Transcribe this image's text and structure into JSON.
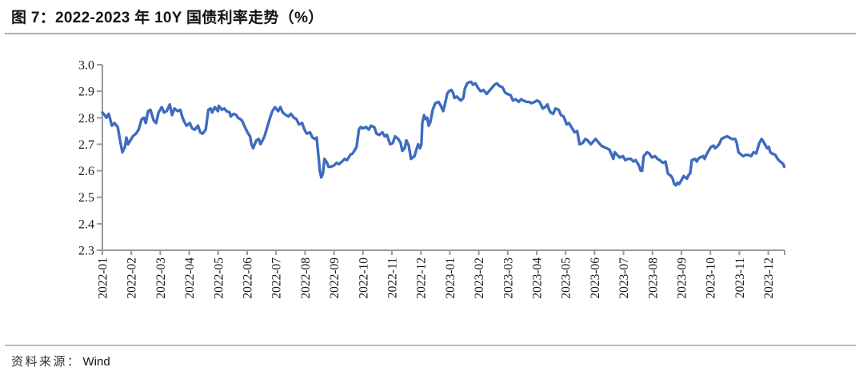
{
  "title": "图 7：2022-2023 年 10Y 国债利率走势（%）",
  "source": {
    "label": "资料来源：",
    "value": "Wind"
  },
  "colors": {
    "line": "#3e6bbf",
    "axis": "#9a9a9a",
    "tick_text": "#1a1a1a",
    "title_rule": "#9fb4c8",
    "footer_rule": "#aec0d1"
  },
  "chart_data": {
    "type": "line",
    "title": "图 7：2022-2023 年 10Y 国债利率走势（%）",
    "xlabel": "",
    "ylabel": "",
    "ylim": [
      2.3,
      3.0
    ],
    "grid": false,
    "legend": "none",
    "y_tick_labels": [
      "3.0",
      "2.9",
      "2.8",
      "2.7",
      "2.6",
      "2.5",
      "2.4",
      "2.3"
    ],
    "y_ticks": [
      3.0,
      2.9,
      2.8,
      2.7,
      2.6,
      2.5,
      2.4,
      2.3
    ],
    "x_tick_labels": [
      "2022-01",
      "2022-02",
      "2022-03",
      "2022-04",
      "2022-05",
      "2022-06",
      "2022-07",
      "2022-08",
      "2022-09",
      "2022-10",
      "2022-11",
      "2022-12",
      "2023-01",
      "2023-02",
      "2023-03",
      "2023-04",
      "2023-05",
      "2023-06",
      "2023-07",
      "2023-08",
      "2023-09",
      "2023-10",
      "2023-11",
      "2023-12"
    ],
    "series": [
      {
        "name": "10Y 国债利率（%）",
        "color": "#3e6bbf",
        "x_unit": "months since 2022-01 tick",
        "points": [
          [
            0.0,
            2.82
          ],
          [
            0.08,
            2.81
          ],
          [
            0.14,
            2.8
          ],
          [
            0.22,
            2.815
          ],
          [
            0.33,
            2.77
          ],
          [
            0.42,
            2.78
          ],
          [
            0.53,
            2.765
          ],
          [
            0.61,
            2.715
          ],
          [
            0.69,
            2.67
          ],
          [
            0.78,
            2.69
          ],
          [
            0.83,
            2.725
          ],
          [
            0.89,
            2.7
          ],
          [
            0.97,
            2.715
          ],
          [
            1.05,
            2.73
          ],
          [
            1.16,
            2.74
          ],
          [
            1.25,
            2.755
          ],
          [
            1.36,
            2.795
          ],
          [
            1.44,
            2.8
          ],
          [
            1.5,
            2.78
          ],
          [
            1.58,
            2.825
          ],
          [
            1.66,
            2.83
          ],
          [
            1.77,
            2.79
          ],
          [
            1.86,
            2.78
          ],
          [
            1.94,
            2.82
          ],
          [
            2.05,
            2.84
          ],
          [
            2.13,
            2.82
          ],
          [
            2.22,
            2.825
          ],
          [
            2.33,
            2.85
          ],
          [
            2.41,
            2.81
          ],
          [
            2.49,
            2.835
          ],
          [
            2.6,
            2.825
          ],
          [
            2.69,
            2.83
          ],
          [
            2.77,
            2.8
          ],
          [
            2.83,
            2.785
          ],
          [
            2.91,
            2.77
          ],
          [
            3.02,
            2.78
          ],
          [
            3.1,
            2.76
          ],
          [
            3.19,
            2.755
          ],
          [
            3.3,
            2.77
          ],
          [
            3.38,
            2.745
          ],
          [
            3.46,
            2.74
          ],
          [
            3.57,
            2.755
          ],
          [
            3.66,
            2.83
          ],
          [
            3.74,
            2.835
          ],
          [
            3.79,
            2.82
          ],
          [
            3.88,
            2.84
          ],
          [
            3.99,
            2.825
          ],
          [
            4.02,
            2.845
          ],
          [
            4.13,
            2.83
          ],
          [
            4.21,
            2.835
          ],
          [
            4.29,
            2.825
          ],
          [
            4.4,
            2.82
          ],
          [
            4.43,
            2.805
          ],
          [
            4.54,
            2.815
          ],
          [
            4.63,
            2.81
          ],
          [
            4.68,
            2.8
          ],
          [
            4.76,
            2.795
          ],
          [
            4.82,
            2.79
          ],
          [
            4.9,
            2.77
          ],
          [
            4.99,
            2.75
          ],
          [
            5.04,
            2.74
          ],
          [
            5.1,
            2.73
          ],
          [
            5.15,
            2.7
          ],
          [
            5.21,
            2.685
          ],
          [
            5.26,
            2.7
          ],
          [
            5.32,
            2.715
          ],
          [
            5.4,
            2.72
          ],
          [
            5.46,
            2.7
          ],
          [
            5.51,
            2.71
          ],
          [
            5.6,
            2.73
          ],
          [
            5.71,
            2.77
          ],
          [
            5.79,
            2.8
          ],
          [
            5.87,
            2.825
          ],
          [
            5.96,
            2.84
          ],
          [
            6.07,
            2.825
          ],
          [
            6.15,
            2.84
          ],
          [
            6.23,
            2.82
          ],
          [
            6.34,
            2.81
          ],
          [
            6.43,
            2.805
          ],
          [
            6.51,
            2.815
          ],
          [
            6.62,
            2.8
          ],
          [
            6.7,
            2.795
          ],
          [
            6.79,
            2.775
          ],
          [
            6.9,
            2.78
          ],
          [
            6.98,
            2.755
          ],
          [
            7.06,
            2.74
          ],
          [
            7.17,
            2.745
          ],
          [
            7.26,
            2.725
          ],
          [
            7.34,
            2.72
          ],
          [
            7.4,
            2.725
          ],
          [
            7.45,
            2.67
          ],
          [
            7.51,
            2.6
          ],
          [
            7.56,
            2.575
          ],
          [
            7.62,
            2.59
          ],
          [
            7.67,
            2.645
          ],
          [
            7.76,
            2.63
          ],
          [
            7.81,
            2.615
          ],
          [
            7.89,
            2.615
          ],
          [
            8.0,
            2.62
          ],
          [
            8.09,
            2.63
          ],
          [
            8.17,
            2.625
          ],
          [
            8.28,
            2.635
          ],
          [
            8.37,
            2.645
          ],
          [
            8.45,
            2.64
          ],
          [
            8.56,
            2.66
          ],
          [
            8.64,
            2.665
          ],
          [
            8.73,
            2.68
          ],
          [
            8.78,
            2.69
          ],
          [
            8.86,
            2.755
          ],
          [
            8.92,
            2.765
          ],
          [
            9.0,
            2.76
          ],
          [
            9.11,
            2.765
          ],
          [
            9.2,
            2.755
          ],
          [
            9.28,
            2.77
          ],
          [
            9.39,
            2.765
          ],
          [
            9.47,
            2.74
          ],
          [
            9.56,
            2.735
          ],
          [
            9.67,
            2.745
          ],
          [
            9.75,
            2.73
          ],
          [
            9.83,
            2.735
          ],
          [
            9.94,
            2.7
          ],
          [
            10.03,
            2.705
          ],
          [
            10.11,
            2.73
          ],
          [
            10.22,
            2.72
          ],
          [
            10.3,
            2.705
          ],
          [
            10.36,
            2.675
          ],
          [
            10.44,
            2.685
          ],
          [
            10.5,
            2.715
          ],
          [
            10.58,
            2.695
          ],
          [
            10.66,
            2.645
          ],
          [
            10.78,
            2.655
          ],
          [
            10.86,
            2.685
          ],
          [
            10.91,
            2.7
          ],
          [
            10.97,
            2.685
          ],
          [
            11.02,
            2.7
          ],
          [
            11.05,
            2.78
          ],
          [
            11.11,
            2.81
          ],
          [
            11.16,
            2.795
          ],
          [
            11.22,
            2.8
          ],
          [
            11.27,
            2.77
          ],
          [
            11.33,
            2.785
          ],
          [
            11.41,
            2.83
          ],
          [
            11.5,
            2.855
          ],
          [
            11.61,
            2.86
          ],
          [
            11.69,
            2.845
          ],
          [
            11.77,
            2.825
          ],
          [
            11.83,
            2.85
          ],
          [
            11.91,
            2.89
          ],
          [
            11.97,
            2.9
          ],
          [
            12.05,
            2.905
          ],
          [
            12.11,
            2.895
          ],
          [
            12.16,
            2.875
          ],
          [
            12.24,
            2.88
          ],
          [
            12.33,
            2.87
          ],
          [
            12.38,
            2.865
          ],
          [
            12.47,
            2.875
          ],
          [
            12.52,
            2.91
          ],
          [
            12.6,
            2.93
          ],
          [
            12.69,
            2.935
          ],
          [
            12.74,
            2.935
          ],
          [
            12.8,
            2.925
          ],
          [
            12.88,
            2.93
          ],
          [
            12.99,
            2.91
          ],
          [
            13.07,
            2.9
          ],
          [
            13.16,
            2.905
          ],
          [
            13.27,
            2.89
          ],
          [
            13.35,
            2.9
          ],
          [
            13.43,
            2.91
          ],
          [
            13.55,
            2.925
          ],
          [
            13.63,
            2.93
          ],
          [
            13.71,
            2.92
          ],
          [
            13.82,
            2.915
          ],
          [
            13.91,
            2.895
          ],
          [
            13.99,
            2.89
          ],
          [
            14.1,
            2.885
          ],
          [
            14.18,
            2.865
          ],
          [
            14.27,
            2.87
          ],
          [
            14.38,
            2.86
          ],
          [
            14.46,
            2.87
          ],
          [
            14.54,
            2.865
          ],
          [
            14.65,
            2.86
          ],
          [
            14.74,
            2.86
          ],
          [
            14.82,
            2.855
          ],
          [
            14.93,
            2.86
          ],
          [
            15.01,
            2.865
          ],
          [
            15.1,
            2.86
          ],
          [
            15.21,
            2.835
          ],
          [
            15.29,
            2.84
          ],
          [
            15.37,
            2.85
          ],
          [
            15.43,
            2.83
          ],
          [
            15.48,
            2.82
          ],
          [
            15.57,
            2.815
          ],
          [
            15.65,
            2.835
          ],
          [
            15.76,
            2.83
          ],
          [
            15.84,
            2.81
          ],
          [
            15.93,
            2.805
          ],
          [
            16.04,
            2.775
          ],
          [
            16.12,
            2.78
          ],
          [
            16.2,
            2.765
          ],
          [
            16.31,
            2.745
          ],
          [
            16.4,
            2.75
          ],
          [
            16.48,
            2.7
          ],
          [
            16.59,
            2.705
          ],
          [
            16.68,
            2.72
          ],
          [
            16.76,
            2.715
          ],
          [
            16.87,
            2.7
          ],
          [
            16.95,
            2.71
          ],
          [
            17.04,
            2.72
          ],
          [
            17.15,
            2.705
          ],
          [
            17.23,
            2.695
          ],
          [
            17.31,
            2.69
          ],
          [
            17.42,
            2.685
          ],
          [
            17.51,
            2.68
          ],
          [
            17.59,
            2.66
          ],
          [
            17.65,
            2.645
          ],
          [
            17.7,
            2.67
          ],
          [
            17.78,
            2.66
          ],
          [
            17.87,
            2.65
          ],
          [
            17.98,
            2.655
          ],
          [
            18.06,
            2.64
          ],
          [
            18.14,
            2.645
          ],
          [
            18.25,
            2.645
          ],
          [
            18.34,
            2.635
          ],
          [
            18.42,
            2.64
          ],
          [
            18.53,
            2.62
          ],
          [
            18.59,
            2.6
          ],
          [
            18.64,
            2.6
          ],
          [
            18.7,
            2.655
          ],
          [
            18.81,
            2.67
          ],
          [
            18.89,
            2.665
          ],
          [
            18.98,
            2.65
          ],
          [
            19.09,
            2.655
          ],
          [
            19.17,
            2.645
          ],
          [
            19.25,
            2.64
          ],
          [
            19.36,
            2.63
          ],
          [
            19.45,
            2.635
          ],
          [
            19.53,
            2.59
          ],
          [
            19.64,
            2.58
          ],
          [
            19.7,
            2.57
          ],
          [
            19.75,
            2.55
          ],
          [
            19.81,
            2.545
          ],
          [
            19.86,
            2.555
          ],
          [
            19.92,
            2.55
          ],
          [
            20.0,
            2.565
          ],
          [
            20.08,
            2.58
          ],
          [
            20.19,
            2.57
          ],
          [
            20.25,
            2.585
          ],
          [
            20.3,
            2.59
          ],
          [
            20.36,
            2.64
          ],
          [
            20.47,
            2.645
          ],
          [
            20.53,
            2.635
          ],
          [
            20.58,
            2.645
          ],
          [
            20.64,
            2.65
          ],
          [
            20.75,
            2.655
          ],
          [
            20.8,
            2.645
          ],
          [
            20.86,
            2.66
          ],
          [
            20.91,
            2.67
          ],
          [
            21.02,
            2.69
          ],
          [
            21.11,
            2.695
          ],
          [
            21.16,
            2.685
          ],
          [
            21.22,
            2.69
          ],
          [
            21.3,
            2.7
          ],
          [
            21.38,
            2.72
          ],
          [
            21.47,
            2.725
          ],
          [
            21.58,
            2.73
          ],
          [
            21.66,
            2.725
          ],
          [
            21.74,
            2.72
          ],
          [
            21.86,
            2.72
          ],
          [
            21.91,
            2.705
          ],
          [
            21.97,
            2.67
          ],
          [
            22.02,
            2.665
          ],
          [
            22.13,
            2.655
          ],
          [
            22.22,
            2.66
          ],
          [
            22.3,
            2.66
          ],
          [
            22.41,
            2.655
          ],
          [
            22.49,
            2.67
          ],
          [
            22.58,
            2.665
          ],
          [
            22.69,
            2.705
          ],
          [
            22.77,
            2.72
          ],
          [
            22.83,
            2.71
          ],
          [
            22.88,
            2.7
          ],
          [
            22.96,
            2.685
          ],
          [
            23.02,
            2.69
          ],
          [
            23.07,
            2.67
          ],
          [
            23.13,
            2.665
          ],
          [
            23.24,
            2.66
          ],
          [
            23.32,
            2.645
          ],
          [
            23.41,
            2.635
          ],
          [
            23.52,
            2.625
          ],
          [
            23.55,
            2.615
          ]
        ]
      }
    ]
  }
}
